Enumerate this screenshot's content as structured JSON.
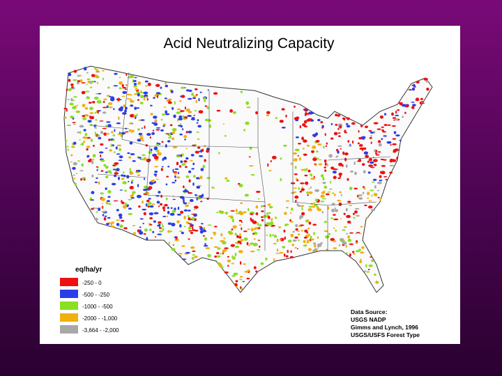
{
  "title": "Acid Neutralizing Capacity",
  "legend": {
    "title": "eq/ha/yr",
    "items": [
      {
        "label": "-250 - 0",
        "color": "#ee1111"
      },
      {
        "label": "-500 - -250",
        "color": "#2a3ee8"
      },
      {
        "label": "-1000 - -500",
        "color": "#88e020"
      },
      {
        "label": "-2000 - -1,000",
        "color": "#f0b010"
      },
      {
        "label": "-3,664 - -2,000",
        "color": "#a8a8a8"
      }
    ]
  },
  "source": [
    "Data Source:",
    "USGS NADP",
    "Gimms and Lynch, 1996",
    "USGS/USFS Forest Type"
  ]
}
